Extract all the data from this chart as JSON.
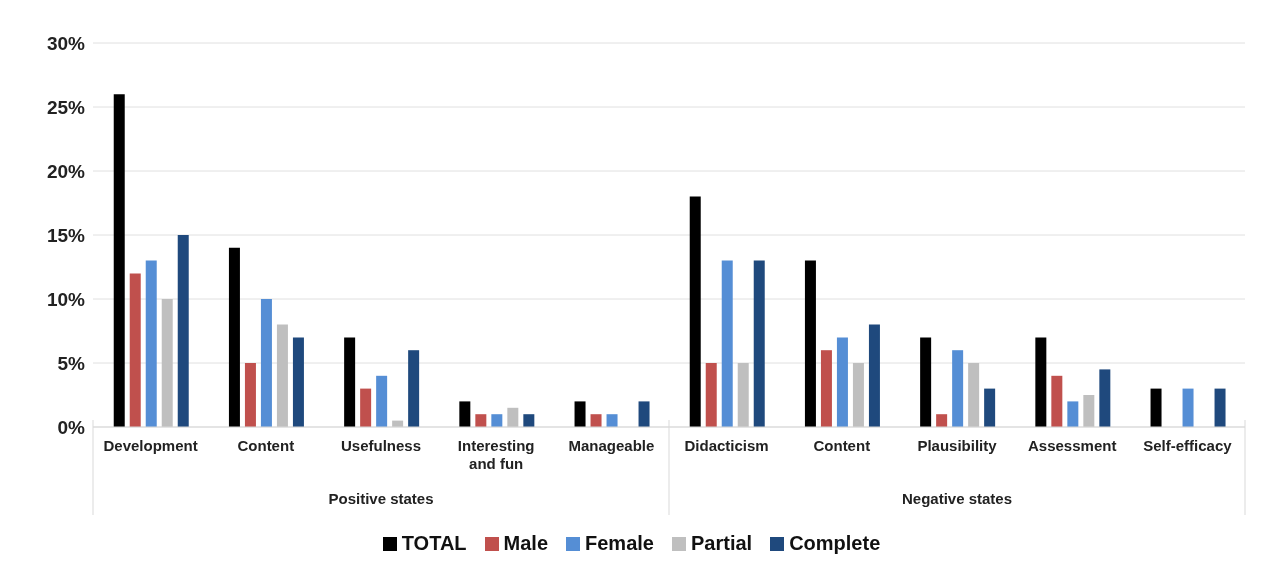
{
  "chart_data": {
    "type": "bar",
    "categories": [
      "Development",
      "Content",
      "Usefulness",
      "Interesting and fun",
      "Manageable",
      "Didacticism",
      "Content",
      "Plausibility",
      "Assessment",
      "Self-efficacy"
    ],
    "annotations": [
      "Positive states",
      "Negative states"
    ],
    "series": [
      {
        "name": "TOTAL",
        "color": "#000000",
        "values": [
          26,
          14,
          7,
          2,
          2,
          18,
          13,
          7,
          7,
          3
        ]
      },
      {
        "name": "Male",
        "color": "#c0504d",
        "values": [
          12,
          5,
          3,
          1,
          1,
          5,
          6,
          1,
          4,
          null
        ]
      },
      {
        "name": "Female",
        "color": "#558ed5",
        "values": [
          13,
          10,
          4,
          1,
          1,
          13,
          7,
          6,
          2,
          3
        ]
      },
      {
        "name": "Partial",
        "color": "#bfbfbf",
        "values": [
          10,
          8,
          0.5,
          1.5,
          null,
          5,
          5,
          5,
          2.5,
          null
        ]
      },
      {
        "name": "Complete",
        "color": "#1f497d",
        "values": [
          15,
          7,
          6,
          1,
          2,
          13,
          8,
          3,
          4.5,
          3
        ]
      }
    ],
    "ylim": [
      0,
      30
    ],
    "yticks": [
      {
        "value": 0,
        "label": "0%"
      },
      {
        "value": 5,
        "label": "5%"
      },
      {
        "value": 10,
        "label": "10%"
      },
      {
        "value": 15,
        "label": "15%"
      },
      {
        "value": 20,
        "label": "20%"
      },
      {
        "value": 25,
        "label": "25%"
      },
      {
        "value": 30,
        "label": "30%"
      }
    ],
    "grid": "y",
    "legend": "bottom"
  }
}
